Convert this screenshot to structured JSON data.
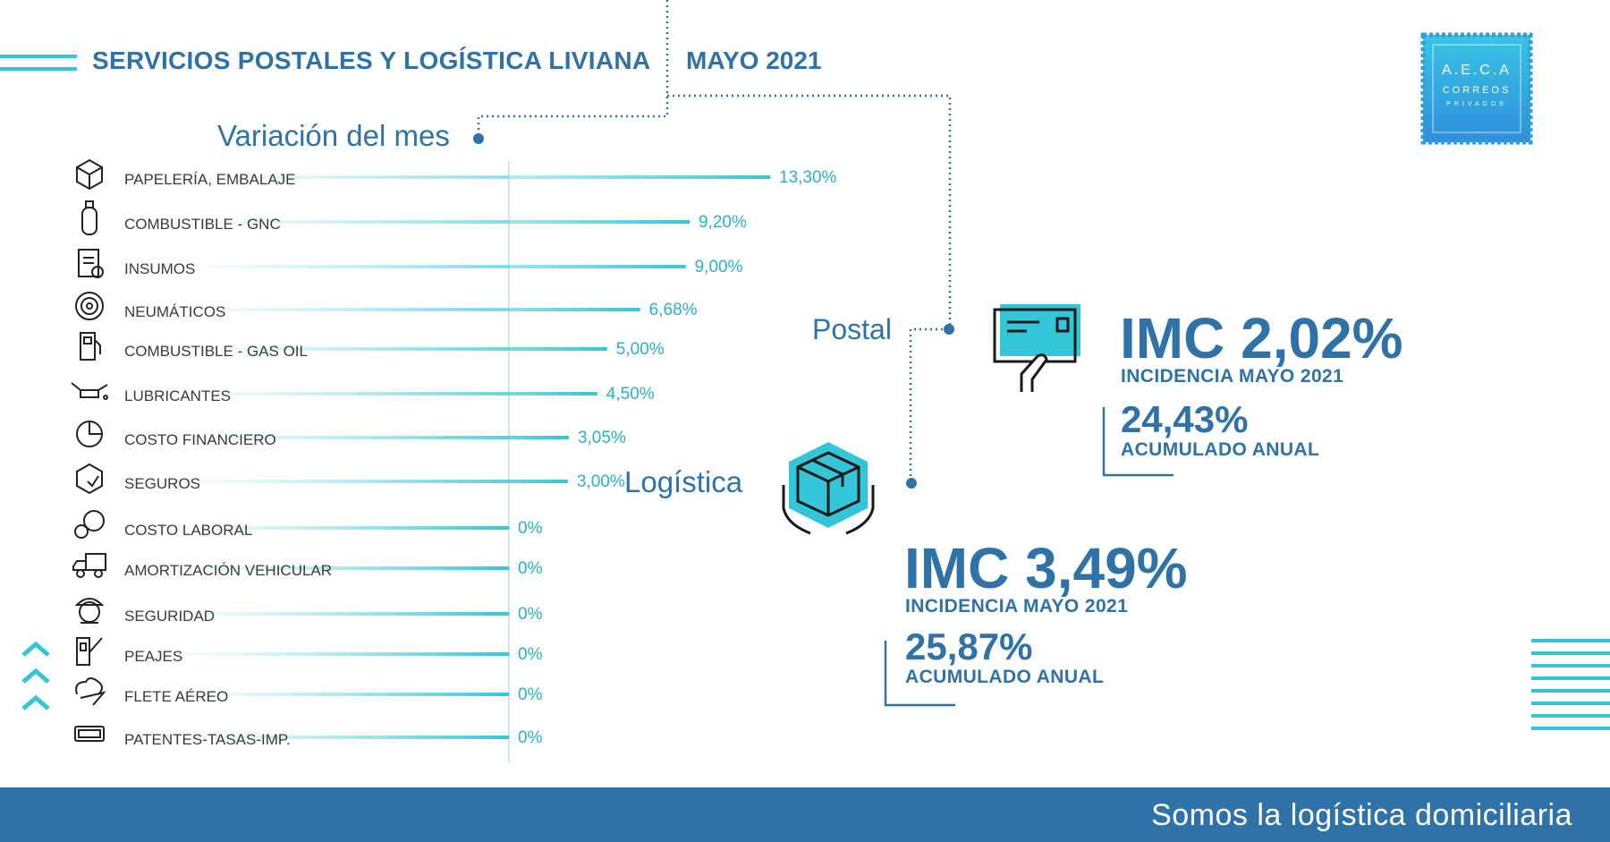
{
  "header": {
    "title": "SERVICIOS POSTALES Y LOGÍSTICA LIVIANA",
    "date": "MAYO 2021"
  },
  "logo": {
    "line1": "A.E.C.A",
    "line2": "CORREOS",
    "line3": "PRIVADOS"
  },
  "labels": {
    "postal": "Postal",
    "logistica": "Logística"
  },
  "postal": {
    "imc": "IMC 2,02%",
    "incidencia": "INCIDENCIA MAYO 2021",
    "acumulado": "24,43%",
    "acumulado_label": "ACUMULADO ANUAL"
  },
  "logistica": {
    "imc": "IMC 3,49%",
    "incidencia": "INCIDENCIA MAYO 2021",
    "acumulado": "25,87%",
    "acumulado_label": "ACUMULADO ANUAL"
  },
  "footer": {
    "text": "Somos la logística domiciliaria"
  },
  "colors": {
    "accent": "#33c6d8",
    "primary": "#2e72a8",
    "value_text": "#26b3c6"
  },
  "chart_data": {
    "type": "bar",
    "orientation": "horizontal",
    "title": "Variación del mes",
    "categories": [
      "PAPELERÍA, EMBALAJE",
      "COMBUSTIBLE - GNC",
      "INSUMOS",
      "NEUMÁTICOS",
      "COMBUSTIBLE - GAS OIL",
      "LUBRICANTES",
      "COSTO FINANCIERO",
      "SEGUROS",
      "COSTO LABORAL",
      "AMORTIZACIÓN VEHICULAR",
      "SEGURIDAD",
      "PEAJES",
      "FLETE AÉREO",
      "PATENTES-TASAS-IMP."
    ],
    "values": [
      13.3,
      9.2,
      9.0,
      6.68,
      5.0,
      4.5,
      3.05,
      3.0,
      0,
      0,
      0,
      0,
      0,
      0
    ],
    "value_labels": [
      "13,30%",
      "9,20%",
      "9,00%",
      "6,68%",
      "5,00%",
      "4,50%",
      "3,05%",
      "3,00%",
      "0%",
      "0%",
      "0%",
      "0%",
      "0%",
      "0%"
    ],
    "icons": [
      "box-icon",
      "gas-cylinder-icon",
      "clipboard-check-icon",
      "tire-icon",
      "fuel-pump-icon",
      "oil-can-icon",
      "pie-chart-icon",
      "shield-box-icon",
      "money-coins-icon",
      "truck-icon",
      "guard-icon",
      "toll-barrier-icon",
      "cloud-plane-icon",
      "license-plate-icon"
    ],
    "xlim": [
      0,
      13.3
    ],
    "grid": false,
    "legend": "none"
  }
}
